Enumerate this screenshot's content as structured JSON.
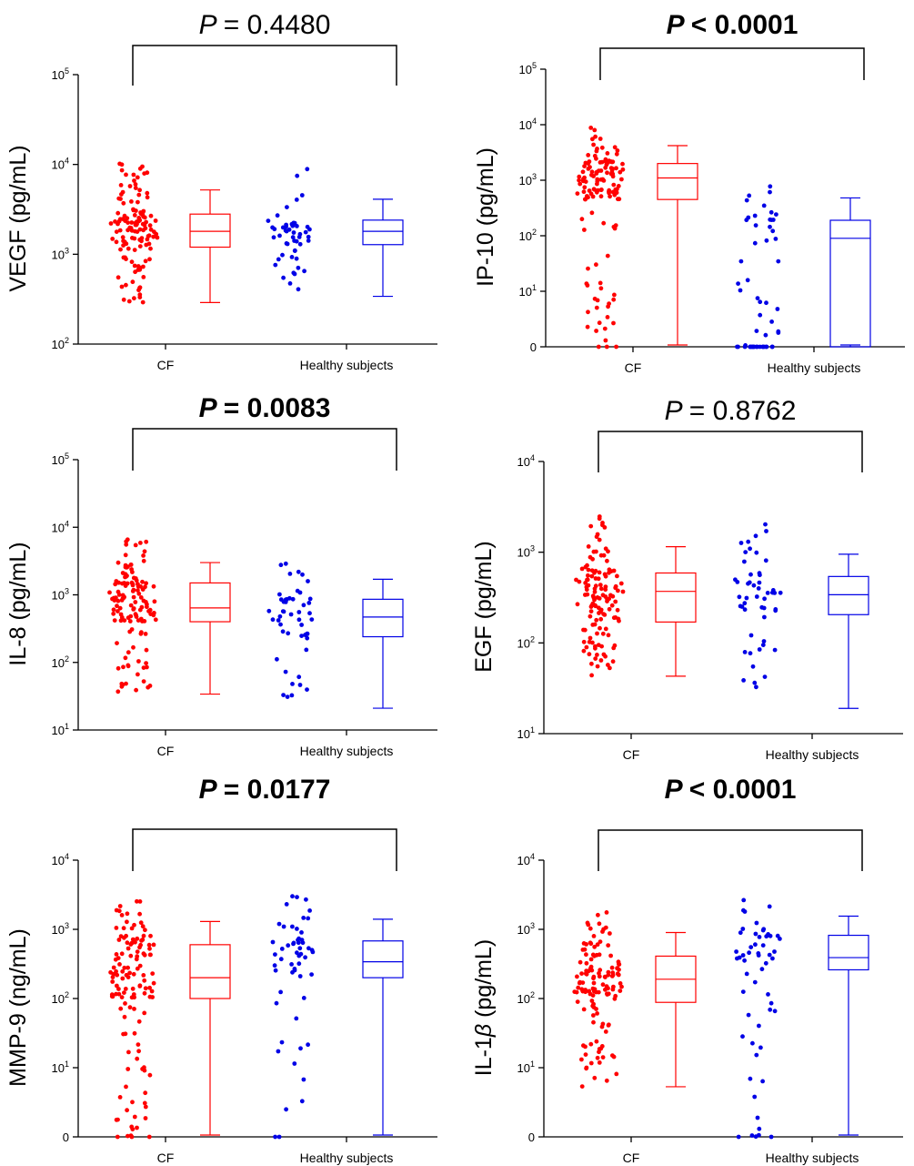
{
  "colors": {
    "cf": "#ff0000",
    "healthy": "#0000e6"
  },
  "chart_data": [
    {
      "type": "box-scatter",
      "ylabel": "VEGF (pg/mL)",
      "p_text": "= 0.4480",
      "p_bold": false,
      "yscale": "log",
      "ylim": [
        100,
        100000
      ],
      "ticks": [
        {
          "v": 100,
          "b": "10",
          "e": "2"
        },
        {
          "v": 1000,
          "b": "10",
          "e": "3"
        },
        {
          "v": 10000,
          "b": "10",
          "e": "4"
        },
        {
          "v": 100000,
          "b": "10",
          "e": "5"
        }
      ],
      "categories": [
        "CF",
        "Healthy subjects"
      ],
      "groups": [
        {
          "box": {
            "min": 290,
            "q1": 1200,
            "median": 1800,
            "q3": 2800,
            "max": 5200
          }
        },
        {
          "box": {
            "min": 340,
            "q1": 1280,
            "median": 1800,
            "q3": 2400,
            "max": 4100
          }
        }
      ],
      "n": [
        130,
        50
      ],
      "seed": 11
    },
    {
      "type": "box-scatter",
      "ylabel": "IP-10 (pg/mL)",
      "p_text": "< 0.0001",
      "p_bold": true,
      "yscale": "log-zero",
      "ylim": [
        0,
        100000
      ],
      "ticks": [
        {
          "v": 0,
          "b": "0",
          "e": ""
        },
        {
          "v": 10,
          "b": "10",
          "e": "1"
        },
        {
          "v": 100,
          "b": "10",
          "e": "2"
        },
        {
          "v": 1000,
          "b": "10",
          "e": "3"
        },
        {
          "v": 10000,
          "b": "10",
          "e": "4"
        },
        {
          "v": 100000,
          "b": "10",
          "e": "5"
        }
      ],
      "categories": [
        "CF",
        "Healthy subjects"
      ],
      "groups": [
        {
          "box": {
            "min": 0,
            "q1": 450,
            "median": 1100,
            "q3": 2000,
            "max": 4200
          }
        },
        {
          "box": {
            "min": 0,
            "q1": 0.3,
            "median": 90,
            "q3": 190,
            "max": 480
          }
        }
      ],
      "n": [
        130,
        55
      ],
      "seed": 23
    },
    {
      "type": "box-scatter",
      "ylabel": "IL-8 (pg/mL)",
      "p_text": "= 0.0083",
      "p_bold": true,
      "yscale": "log",
      "ylim": [
        10,
        100000
      ],
      "ticks": [
        {
          "v": 10,
          "b": "10",
          "e": "1"
        },
        {
          "v": 100,
          "b": "10",
          "e": "2"
        },
        {
          "v": 1000,
          "b": "10",
          "e": "3"
        },
        {
          "v": 10000,
          "b": "10",
          "e": "4"
        },
        {
          "v": 100000,
          "b": "10",
          "e": "5"
        }
      ],
      "categories": [
        "CF",
        "Healthy subjects"
      ],
      "groups": [
        {
          "box": {
            "min": 34,
            "q1": 400,
            "median": 640,
            "q3": 1500,
            "max": 3000
          }
        },
        {
          "box": {
            "min": 21,
            "q1": 240,
            "median": 470,
            "q3": 860,
            "max": 1700
          }
        }
      ],
      "n": [
        130,
        50
      ],
      "seed": 37
    },
    {
      "type": "box-scatter",
      "ylabel": "EGF (pg/mL)",
      "p_text": "= 0.8762",
      "p_bold": false,
      "yscale": "log",
      "ylim": [
        10,
        10000
      ],
      "ticks": [
        {
          "v": 10,
          "b": "10",
          "e": "1"
        },
        {
          "v": 100,
          "b": "10",
          "e": "2"
        },
        {
          "v": 1000,
          "b": "10",
          "e": "3"
        },
        {
          "v": 10000,
          "b": "10",
          "e": "4"
        }
      ],
      "categories": [
        "CF",
        "Healthy subjects"
      ],
      "groups": [
        {
          "box": {
            "min": 43,
            "q1": 170,
            "median": 370,
            "q3": 590,
            "max": 1150
          }
        },
        {
          "box": {
            "min": 19,
            "q1": 205,
            "median": 340,
            "q3": 540,
            "max": 950
          }
        }
      ],
      "n": [
        130,
        50
      ],
      "seed": 41
    },
    {
      "type": "box-scatter",
      "ylabel": "MMP-9 (ng/mL)",
      "p_text": "= 0.0177",
      "p_bold": true,
      "yscale": "log-zero",
      "ylim": [
        0,
        10000
      ],
      "ticks": [
        {
          "v": 0,
          "b": "0",
          "e": ""
        },
        {
          "v": 10,
          "b": "10",
          "e": "1"
        },
        {
          "v": 100,
          "b": "10",
          "e": "2"
        },
        {
          "v": 1000,
          "b": "10",
          "e": "3"
        },
        {
          "v": 10000,
          "b": "10",
          "e": "4"
        }
      ],
      "categories": [
        "CF",
        "Healthy subjects"
      ],
      "groups": [
        {
          "box": {
            "min": 0,
            "q1": 100,
            "median": 200,
            "q3": 600,
            "max": 1300
          }
        },
        {
          "box": {
            "min": 0,
            "q1": 200,
            "median": 340,
            "q3": 680,
            "max": 1400
          }
        }
      ],
      "n": [
        130,
        55
      ],
      "seed": 53
    },
    {
      "type": "box-scatter",
      "ylabel": "IL-1β (pg/mL)",
      "ylabel_parts": [
        "IL-1",
        "β",
        " (pg/mL)"
      ],
      "p_text": "< 0.0001",
      "p_bold": true,
      "yscale": "log-zero",
      "ylim": [
        0,
        10000
      ],
      "ticks": [
        {
          "v": 0,
          "b": "0",
          "e": ""
        },
        {
          "v": 10,
          "b": "10",
          "e": "1"
        },
        {
          "v": 100,
          "b": "10",
          "e": "2"
        },
        {
          "v": 1000,
          "b": "10",
          "e": "3"
        },
        {
          "v": 10000,
          "b": "10",
          "e": "4"
        }
      ],
      "categories": [
        "CF",
        "Healthy subjects"
      ],
      "groups": [
        {
          "box": {
            "min": 5.3,
            "q1": 88,
            "median": 190,
            "q3": 410,
            "max": 900
          }
        },
        {
          "box": {
            "min": 0,
            "q1": 260,
            "median": 390,
            "q3": 820,
            "max": 1550
          }
        }
      ],
      "n": [
        130,
        55
      ],
      "seed": 67
    }
  ]
}
